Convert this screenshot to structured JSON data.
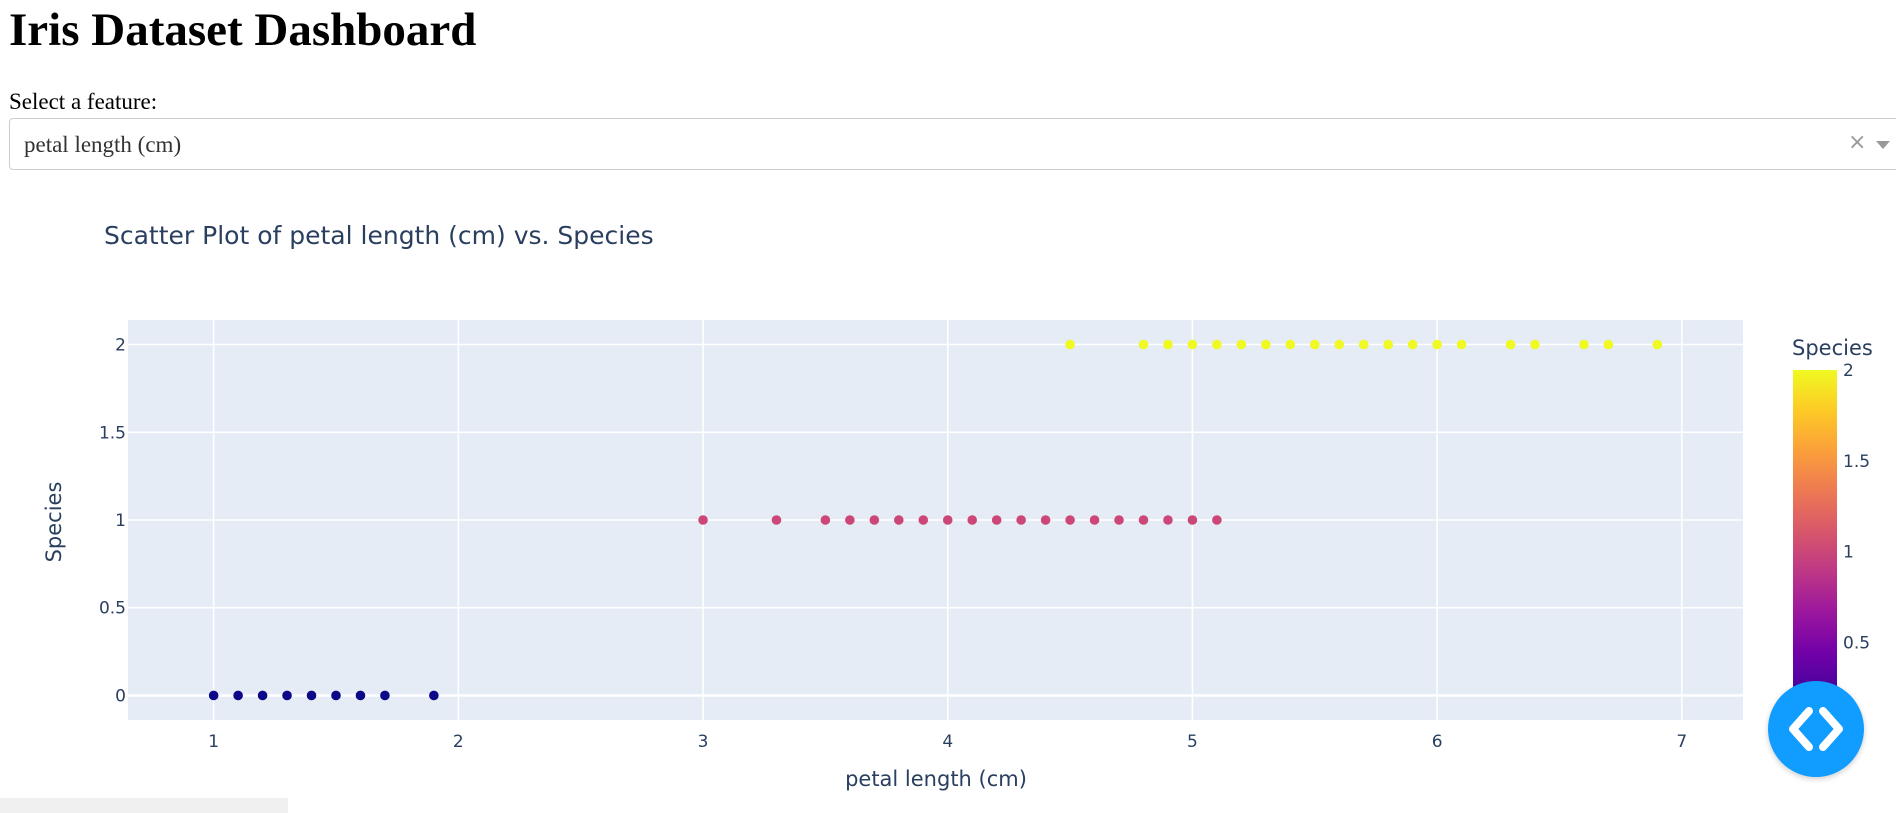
{
  "page": {
    "title": "Iris Dataset Dashboard",
    "feature_label": "Select a feature:",
    "dropdown": {
      "value": "petal length (cm)",
      "clear_icon": "×",
      "caret_icon": "chevron-down-icon"
    }
  },
  "fab_icon": "code-icon",
  "chart_data": {
    "type": "scatter",
    "title": "Scatter Plot of petal length (cm) vs. Species",
    "xlabel": "petal length (cm)",
    "ylabel": "Species",
    "xlim": [
      0.65,
      7.25
    ],
    "ylim": [
      -0.14,
      2.14
    ],
    "xticks": [
      1,
      2,
      3,
      4,
      5,
      6,
      7
    ],
    "yticks": [
      0,
      0.5,
      1,
      1.5,
      2
    ],
    "grid": true,
    "background": "#e5ecf6",
    "colorscale": "plasma",
    "colorbar": {
      "title": "Species",
      "ticks": [
        0.5,
        1,
        1.5,
        2
      ],
      "range": [
        0,
        2
      ]
    },
    "series": [
      {
        "values_y": 0,
        "color": "#0d0887",
        "x": [
          1.0,
          1.1,
          1.2,
          1.3,
          1.4,
          1.5,
          1.6,
          1.7,
          1.9
        ]
      },
      {
        "values_y": 1,
        "color": "#cc4778",
        "x": [
          3.0,
          3.3,
          3.5,
          3.6,
          3.7,
          3.8,
          3.9,
          4.0,
          4.1,
          4.2,
          4.3,
          4.4,
          4.5,
          4.6,
          4.7,
          4.8,
          4.9,
          5.0,
          5.1
        ]
      },
      {
        "values_y": 2,
        "color": "#f0f921",
        "x": [
          4.5,
          4.8,
          4.9,
          5.0,
          5.1,
          5.2,
          5.3,
          5.4,
          5.5,
          5.6,
          5.7,
          5.8,
          5.9,
          6.0,
          6.1,
          6.3,
          6.4,
          6.6,
          6.7,
          6.9
        ]
      }
    ]
  }
}
